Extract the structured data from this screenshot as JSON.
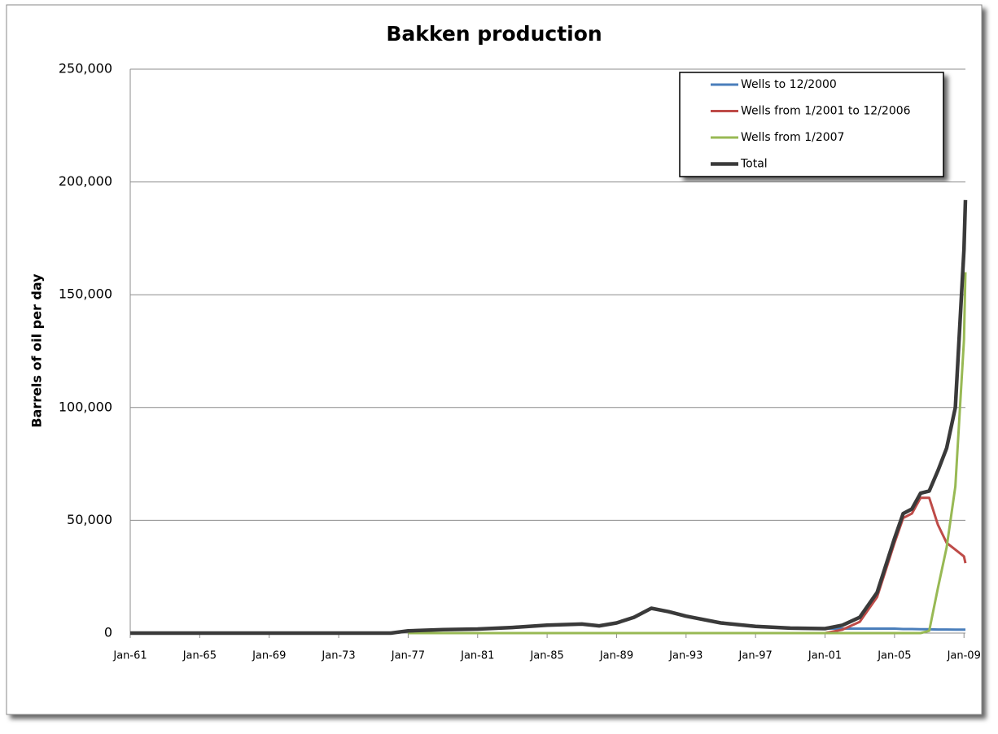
{
  "chart_data": {
    "type": "line",
    "title": "Bakken production",
    "y_label": "Barrels of oil per day",
    "x": [
      "Jan-61",
      "Jan-68",
      "Jan-76",
      "Jan-77",
      "Jan-79",
      "Jan-81",
      "Jan-83",
      "Jan-85",
      "Jan-87",
      "Jan-88",
      "Jan-89",
      "Jan-90",
      "Jan-91",
      "Jan-92",
      "Jan-93",
      "Jan-95",
      "Jan-97",
      "Jan-99",
      "Jan-01",
      "Jan-02",
      "Jan-03",
      "Jan-04",
      "Jul-04",
      "Jan-05",
      "Jul-05",
      "Jan-06",
      "Jul-06",
      "Jan-07",
      "Jul-07",
      "Jan-08",
      "Jul-08",
      "Jan-09",
      "Feb-09"
    ],
    "series": [
      {
        "name": "Wells to 12/2000",
        "color": "#4a7ebb",
        "width": 3,
        "values": [
          0,
          0,
          0,
          1000,
          1500,
          1800,
          2500,
          3500,
          4000,
          3200,
          4500,
          7000,
          11000,
          9500,
          7500,
          4500,
          3000,
          2200,
          2000,
          2000,
          2000,
          2000,
          2000,
          2000,
          1800,
          1800,
          1700,
          1700,
          1600,
          1600,
          1500,
          1500,
          1500
        ]
      },
      {
        "name": "Wells from 1/2001 to 12/2006",
        "color": "#be4b48",
        "width": 3,
        "values": [
          null,
          null,
          null,
          null,
          null,
          null,
          null,
          null,
          null,
          null,
          null,
          null,
          null,
          null,
          null,
          null,
          null,
          null,
          0,
          1500,
          5000,
          16000,
          28000,
          40000,
          51000,
          53000,
          60000,
          60000,
          48000,
          40000,
          37000,
          34000,
          31000
        ]
      },
      {
        "name": "Wells from 1/2007",
        "color": "#98b954",
        "width": 3,
        "values": [
          null,
          null,
          null,
          0,
          0,
          0,
          0,
          0,
          0,
          0,
          0,
          0,
          0,
          0,
          0,
          0,
          0,
          0,
          0,
          0,
          0,
          0,
          0,
          0,
          0,
          0,
          0,
          1000,
          20000,
          38000,
          65000,
          130000,
          160000
        ]
      },
      {
        "name": "Total",
        "color": "#3a3a3a",
        "width": 4.5,
        "values": [
          0,
          0,
          0,
          1000,
          1500,
          1800,
          2500,
          3500,
          4000,
          3200,
          4500,
          7000,
          11000,
          9500,
          7500,
          4500,
          3000,
          2200,
          2000,
          3500,
          7000,
          18000,
          30000,
          42000,
          53000,
          55000,
          62000,
          63000,
          72000,
          82000,
          100000,
          170000,
          192000
        ]
      }
    ],
    "xlim": [
      "Jan-61",
      "Feb-09"
    ],
    "xticks": [
      "Jan-61",
      "Jan-65",
      "Jan-69",
      "Jan-73",
      "Jan-77",
      "Jan-81",
      "Jan-85",
      "Jan-89",
      "Jan-93",
      "Jan-97",
      "Jan-01",
      "Jan-05",
      "Jan-09"
    ],
    "ylim": [
      0,
      250000
    ],
    "yticks": [
      0,
      {
        "value": 50000,
        "label": "50,000"
      },
      {
        "value": 100000,
        "label": "100,000"
      },
      {
        "value": 150000,
        "label": "150,000"
      },
      {
        "value": 200000,
        "label": "200,000"
      },
      {
        "value": 250000,
        "label": "250,000"
      }
    ],
    "grid": true,
    "legend": "top-right"
  }
}
